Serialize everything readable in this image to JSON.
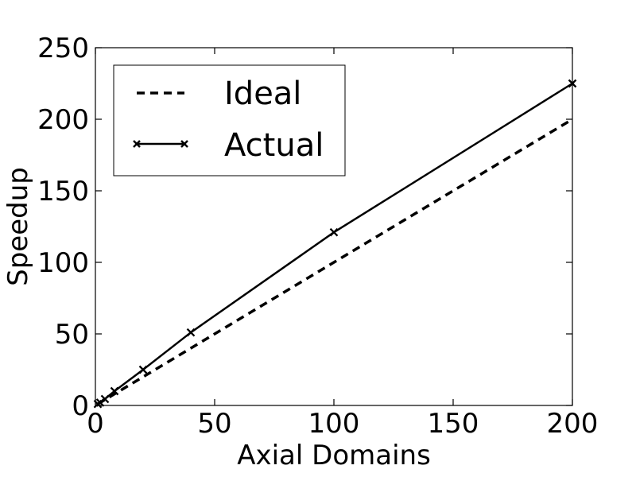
{
  "chart_data": {
    "type": "line",
    "xlabel": "Axial Domains",
    "ylabel": "Speedup",
    "xlim": [
      0,
      200
    ],
    "ylim": [
      0,
      250
    ],
    "x_ticks": [
      "0",
      "50",
      "100",
      "150",
      "200"
    ],
    "y_ticks": [
      "0",
      "50",
      "100",
      "150",
      "200",
      "250"
    ],
    "grid": false,
    "legend_position": "top-left",
    "series": [
      {
        "name": "Ideal",
        "style": "dashed",
        "marker": "none",
        "color": "#000000",
        "x": [
          1,
          200
        ],
        "y": [
          1,
          200
        ]
      },
      {
        "name": "Actual",
        "style": "solid",
        "marker": "x",
        "color": "#000000",
        "x": [
          1,
          2,
          4,
          8,
          20,
          40,
          100,
          200
        ],
        "y": [
          1,
          2,
          4.5,
          10,
          25,
          51,
          121,
          225
        ]
      }
    ]
  }
}
